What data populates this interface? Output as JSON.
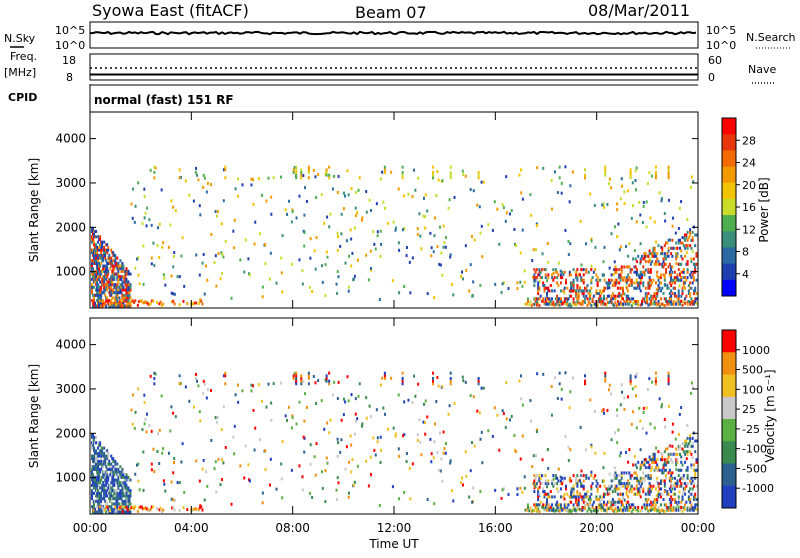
{
  "header": {
    "title": "Syowa East (fitACF)",
    "beam": "Beam 07",
    "date": "08/Mar/2011"
  },
  "top_panels": {
    "nsky_label": "N.Sky",
    "nsearch_label": "N.Search",
    "nsky_ticks": [
      "10^5",
      "10^0"
    ],
    "nsearch_ticks": [
      "10^5",
      "10^0"
    ],
    "freq_label": "Freq.",
    "freq_unit": "[MHz]",
    "freq_ticks": [
      "18",
      "8"
    ],
    "nave_label": "Nave",
    "nave_ticks": [
      "60",
      "0"
    ],
    "cpid_label": "CPID",
    "cpid_value": "normal (fast) 151 RF"
  },
  "chart_data": [
    {
      "type": "heatmap",
      "name": "power",
      "ylabel": "Slant Range [km]",
      "ylim": [
        180,
        4600
      ],
      "yticks": [
        "1000",
        "2000",
        "3000",
        "4000"
      ],
      "colorbar_label": "Power [dB]",
      "colorbar_ticks": [
        "28",
        "24",
        "20",
        "16",
        "12",
        "8",
        "4"
      ],
      "colors": [
        "#0000ff",
        "#1f3fb0",
        "#2b6aa3",
        "#3a8f7a",
        "#4fae4f",
        "#c8dc2a",
        "#f2c400",
        "#f29a00",
        "#f26a00",
        "#e8360c",
        "#ff0000"
      ]
    },
    {
      "type": "heatmap",
      "name": "velocity",
      "ylabel": "Slant Range [km]",
      "ylim": [
        180,
        4600
      ],
      "yticks": [
        "1000",
        "2000",
        "3000",
        "4000"
      ],
      "colorbar_label": "Velocity [m s⁻¹]",
      "colorbar_ticks": [
        "1000",
        "500",
        "100",
        "25",
        "-25",
        "-100",
        "-500",
        "-1000"
      ],
      "colors": [
        "#2040c0",
        "#2c6090",
        "#3a8a50",
        "#5ab040",
        "#c8c8c8",
        "#f0c020",
        "#f09010",
        "#ff0000"
      ],
      "xlabel": "Time UT",
      "xticks": [
        "00:00",
        "04:00",
        "08:00",
        "12:00",
        "16:00",
        "20:00",
        "00:00"
      ]
    }
  ]
}
